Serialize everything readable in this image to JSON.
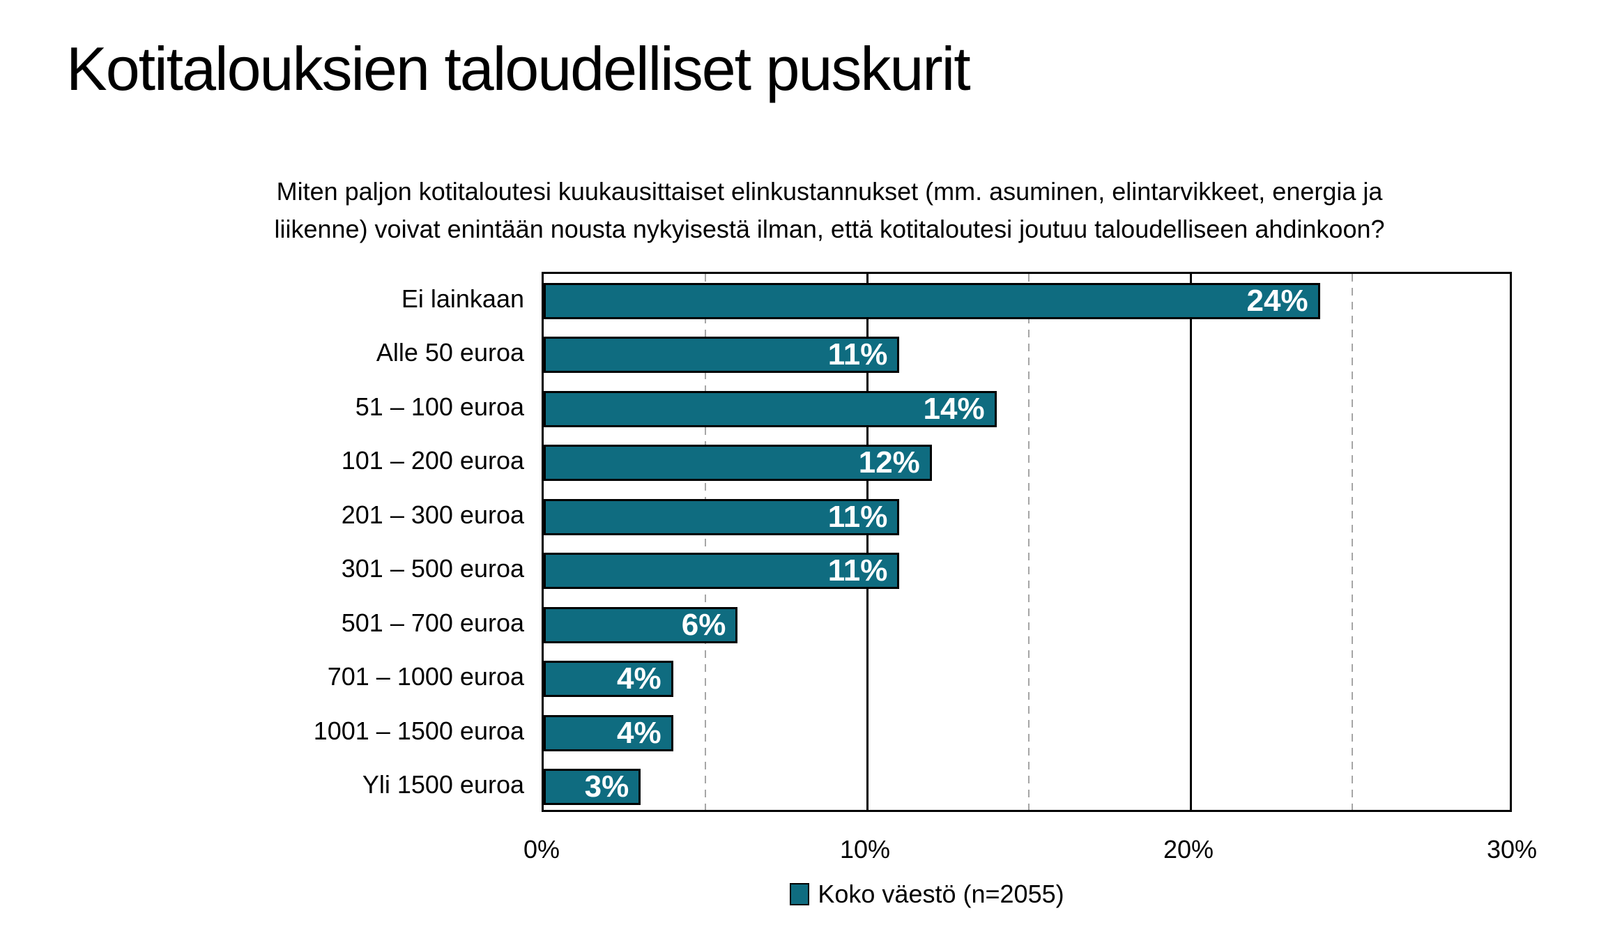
{
  "title": "Kotitalouksien taloudelliset puskurit",
  "question": {
    "line1": "Miten paljon kotitaloutesi kuukausittaiset elinkustannukset (mm. asuminen, elintarvikkeet, energia ja",
    "line2": "liikenne) voivat enintään nousta nykyisestä ilman, että kotitaloutesi joutuu taloudelliseen ahdinkoon?"
  },
  "chart_data": {
    "type": "bar",
    "orientation": "horizontal",
    "title": "",
    "categories": [
      "Ei lainkaan",
      "Alle 50 euroa",
      "51 – 100 euroa",
      "101 – 200 euroa",
      "201 – 300 euroa",
      "301 – 500 euroa",
      "501 – 700 euroa",
      "701 – 1000 euroa",
      "1001 – 1500 euroa",
      "Yli 1500 euroa"
    ],
    "values": [
      24,
      11,
      14,
      12,
      11,
      11,
      6,
      4,
      4,
      3
    ],
    "value_labels": [
      "24%",
      "11%",
      "14%",
      "12%",
      "11%",
      "11%",
      "6%",
      "4%",
      "4%",
      "3%"
    ],
    "xlabel": "",
    "ylabel": "",
    "x_axis": {
      "min": 0,
      "max": 30,
      "tick_labels": [
        "0%",
        "10%",
        "20%",
        "30%"
      ],
      "tick_values": [
        0,
        10,
        20,
        30
      ],
      "major_gridlines": [
        10,
        20
      ],
      "minor_gridlines": [
        5,
        15,
        25
      ]
    },
    "legend": {
      "position": "bottom",
      "entries": [
        {
          "label": "Koko väestö (n=2055)",
          "color": "#0F6C80"
        }
      ]
    },
    "colors": {
      "bar_fill": "#0F6C80",
      "bar_border": "#000000",
      "value_label_text": "#FFFFFF",
      "major_grid": "#000000",
      "minor_grid": "#A6A6A6",
      "plot_border": "#000000",
      "background": "#FFFFFF"
    }
  }
}
